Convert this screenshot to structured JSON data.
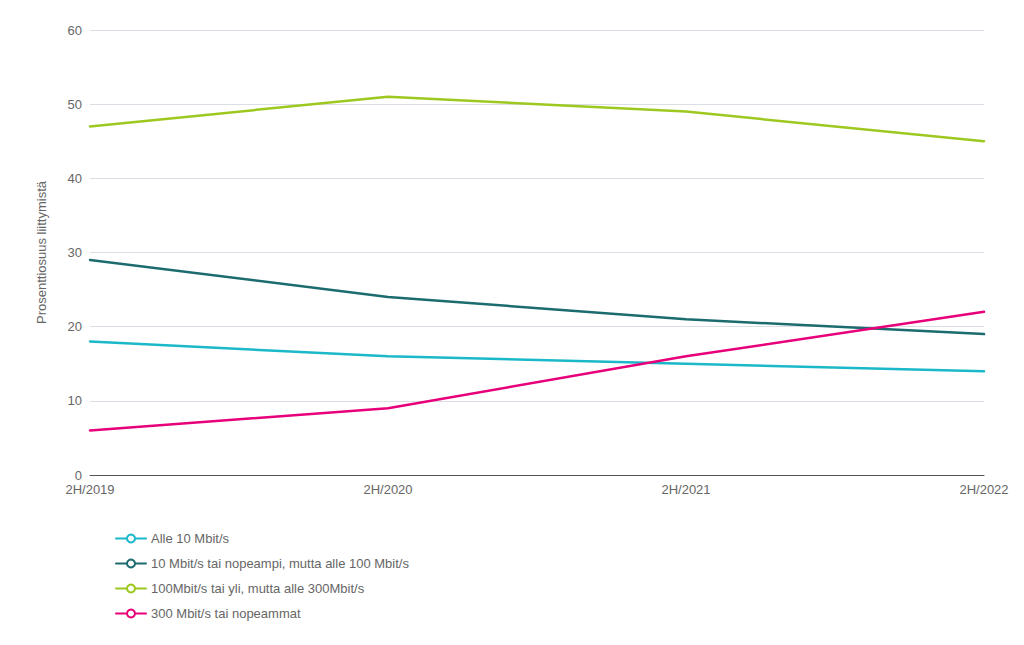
{
  "chart_data": {
    "type": "line",
    "categories": [
      "2H/2019",
      "2H/2020",
      "2H/2021",
      "2H/2022"
    ],
    "series": [
      {
        "name": "Alle 10 Mbit/s",
        "color": "#1ab8c8",
        "values": [
          18,
          16,
          15,
          14
        ]
      },
      {
        "name": "10 Mbit/s tai nopeampi, mutta alle 100 Mbit/s",
        "color": "#1c6b6e",
        "values": [
          29,
          24,
          21,
          19
        ]
      },
      {
        "name": "100Mbit/s tai yli, mutta alle 300Mbit/s",
        "color": "#9dc820",
        "values": [
          47,
          51,
          49,
          45
        ]
      },
      {
        "name": "300 Mbit/s tai nopeammat",
        "color": "#e8007a",
        "values": [
          6,
          9,
          16,
          22
        ]
      }
    ],
    "y_label": "Prosenttiosuus liittymistä",
    "ylim": [
      0,
      60
    ],
    "yticks": [
      0,
      10,
      20,
      30,
      40,
      50,
      60
    ],
    "grid": true,
    "legend": "bottom"
  }
}
